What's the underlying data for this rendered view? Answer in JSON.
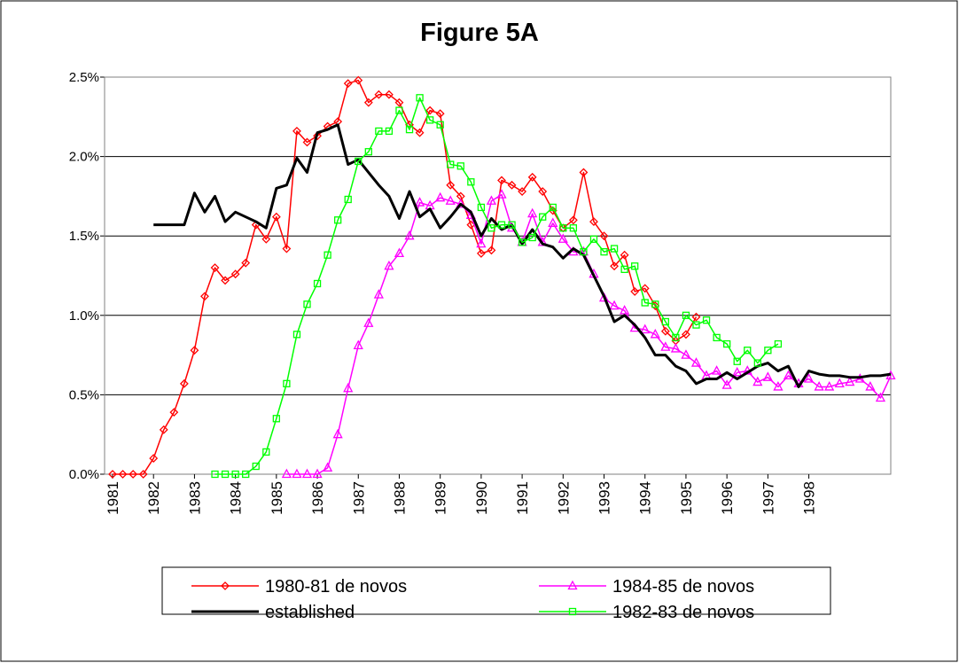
{
  "chart_data": {
    "type": "line",
    "title": "Figure 5A",
    "categories": [
      "1981",
      null,
      null,
      null,
      "1982",
      null,
      null,
      null,
      "1983",
      null,
      null,
      null,
      "1984",
      null,
      null,
      null,
      "1985",
      null,
      null,
      null,
      "1986",
      null,
      null,
      null,
      "1987",
      null,
      null,
      null,
      "1988",
      null,
      null,
      null,
      "1989",
      null,
      null,
      null,
      "1990",
      null,
      null,
      null,
      "1991",
      null,
      null,
      null,
      "1992",
      null,
      null,
      null,
      "1993",
      null,
      null,
      null,
      "1994",
      null,
      null,
      null,
      "1995",
      null,
      null,
      null,
      "1996",
      null,
      null,
      null,
      "1997",
      null,
      null,
      null,
      "1998",
      null,
      null,
      null,
      null,
      null,
      null,
      null,
      null
    ],
    "ylim": [
      0,
      2.5
    ],
    "yticks": [
      {
        "value": 0,
        "label": "0.0%"
      },
      {
        "value": 0.5,
        "label": "0.5%"
      },
      {
        "value": 1,
        "label": "1.0%"
      },
      {
        "value": 1.5,
        "label": "1.5%"
      },
      {
        "value": 2,
        "label": "2.0%"
      },
      {
        "value": 2.5,
        "label": "2.5%"
      }
    ],
    "grid": true,
    "legend": "bottom",
    "series": [
      {
        "name": "1980-81 de novos",
        "color": "#ff0000",
        "marker": "diamond",
        "line_width": 1.5,
        "values": [
          0,
          0,
          0,
          0,
          0.1,
          0.28,
          0.39,
          0.57,
          0.78,
          1.12,
          1.3,
          1.22,
          1.26,
          1.33,
          1.57,
          1.48,
          1.62,
          1.42,
          2.16,
          2.09,
          2.13,
          2.19,
          2.22,
          2.46,
          2.48,
          2.34,
          2.39,
          2.39,
          2.34,
          2.2,
          2.15,
          2.29,
          2.27,
          1.82,
          1.75,
          1.57,
          1.39,
          1.41,
          1.85,
          1.82,
          1.78,
          1.87,
          1.78,
          1.66,
          1.55,
          1.6,
          1.9,
          1.59,
          1.5,
          1.31,
          1.38,
          1.15,
          1.17,
          1.06,
          0.9,
          0.84,
          0.88,
          0.99,
          null,
          null,
          null,
          null,
          null,
          null,
          null,
          null,
          null,
          null,
          null,
          null,
          null,
          null,
          null,
          null,
          null,
          null,
          null
        ]
      },
      {
        "name": "1984-85 de novos",
        "color": "#ff00ff",
        "marker": "triangle",
        "line_width": 1.5,
        "values": [
          null,
          null,
          null,
          null,
          null,
          null,
          null,
          null,
          null,
          null,
          null,
          null,
          null,
          null,
          null,
          null,
          null,
          0,
          0,
          0,
          0,
          0.04,
          0.25,
          0.54,
          0.81,
          0.95,
          1.13,
          1.31,
          1.39,
          1.5,
          1.71,
          1.69,
          1.74,
          1.72,
          1.7,
          1.63,
          1.45,
          1.72,
          1.76,
          1.55,
          1.46,
          1.64,
          1.46,
          1.58,
          1.48,
          1.4,
          1.4,
          1.26,
          1.11,
          1.06,
          1.03,
          0.92,
          0.91,
          0.88,
          0.8,
          0.79,
          0.75,
          0.7,
          0.62,
          0.65,
          0.56,
          0.64,
          0.65,
          0.58,
          0.61,
          0.55,
          0.62,
          0.57,
          0.6,
          0.55,
          0.55,
          0.57,
          0.58,
          0.6,
          0.55,
          0.48,
          0.62
        ]
      },
      {
        "name": "established",
        "color": "#000000",
        "marker": "none",
        "line_width": 3,
        "values": [
          null,
          null,
          null,
          null,
          1.57,
          1.57,
          1.57,
          1.57,
          1.77,
          1.65,
          1.75,
          1.59,
          1.65,
          1.62,
          1.59,
          1.55,
          1.8,
          1.82,
          1.99,
          1.9,
          2.15,
          2.17,
          2.2,
          1.95,
          1.98,
          1.9,
          1.82,
          1.75,
          1.61,
          1.78,
          1.62,
          1.67,
          1.55,
          1.62,
          1.7,
          1.65,
          1.5,
          1.61,
          1.54,
          1.57,
          1.45,
          1.54,
          1.45,
          1.43,
          1.36,
          1.42,
          1.38,
          1.25,
          1.12,
          0.96,
          1.0,
          0.94,
          0.86,
          0.75,
          0.75,
          0.68,
          0.65,
          0.57,
          0.6,
          0.6,
          0.64,
          0.6,
          0.64,
          0.68,
          0.7,
          0.65,
          0.68,
          0.55,
          0.65,
          0.63,
          0.62,
          0.62,
          0.61,
          0.61,
          0.62,
          0.62,
          0.63
        ]
      },
      {
        "name": "1982-83 de novos",
        "color": "#00ff00",
        "marker": "square",
        "line_width": 1.5,
        "values": [
          null,
          null,
          null,
          null,
          null,
          null,
          null,
          null,
          null,
          null,
          0,
          0,
          0,
          0,
          0.05,
          0.14,
          0.35,
          0.57,
          0.88,
          1.07,
          1.2,
          1.38,
          1.6,
          1.73,
          1.97,
          2.03,
          2.16,
          2.16,
          2.29,
          2.17,
          2.37,
          2.23,
          2.2,
          1.95,
          1.94,
          1.84,
          1.68,
          1.55,
          1.57,
          1.57,
          1.46,
          1.49,
          1.62,
          1.68,
          1.55,
          1.55,
          1.4,
          1.48,
          1.4,
          1.42,
          1.29,
          1.31,
          1.08,
          1.07,
          0.96,
          0.86,
          1.0,
          0.94,
          0.97,
          0.86,
          0.82,
          0.71,
          0.78,
          0.7,
          0.78,
          0.82,
          null,
          null,
          null,
          null,
          null,
          null,
          null,
          null,
          null,
          null,
          null
        ]
      }
    ]
  }
}
